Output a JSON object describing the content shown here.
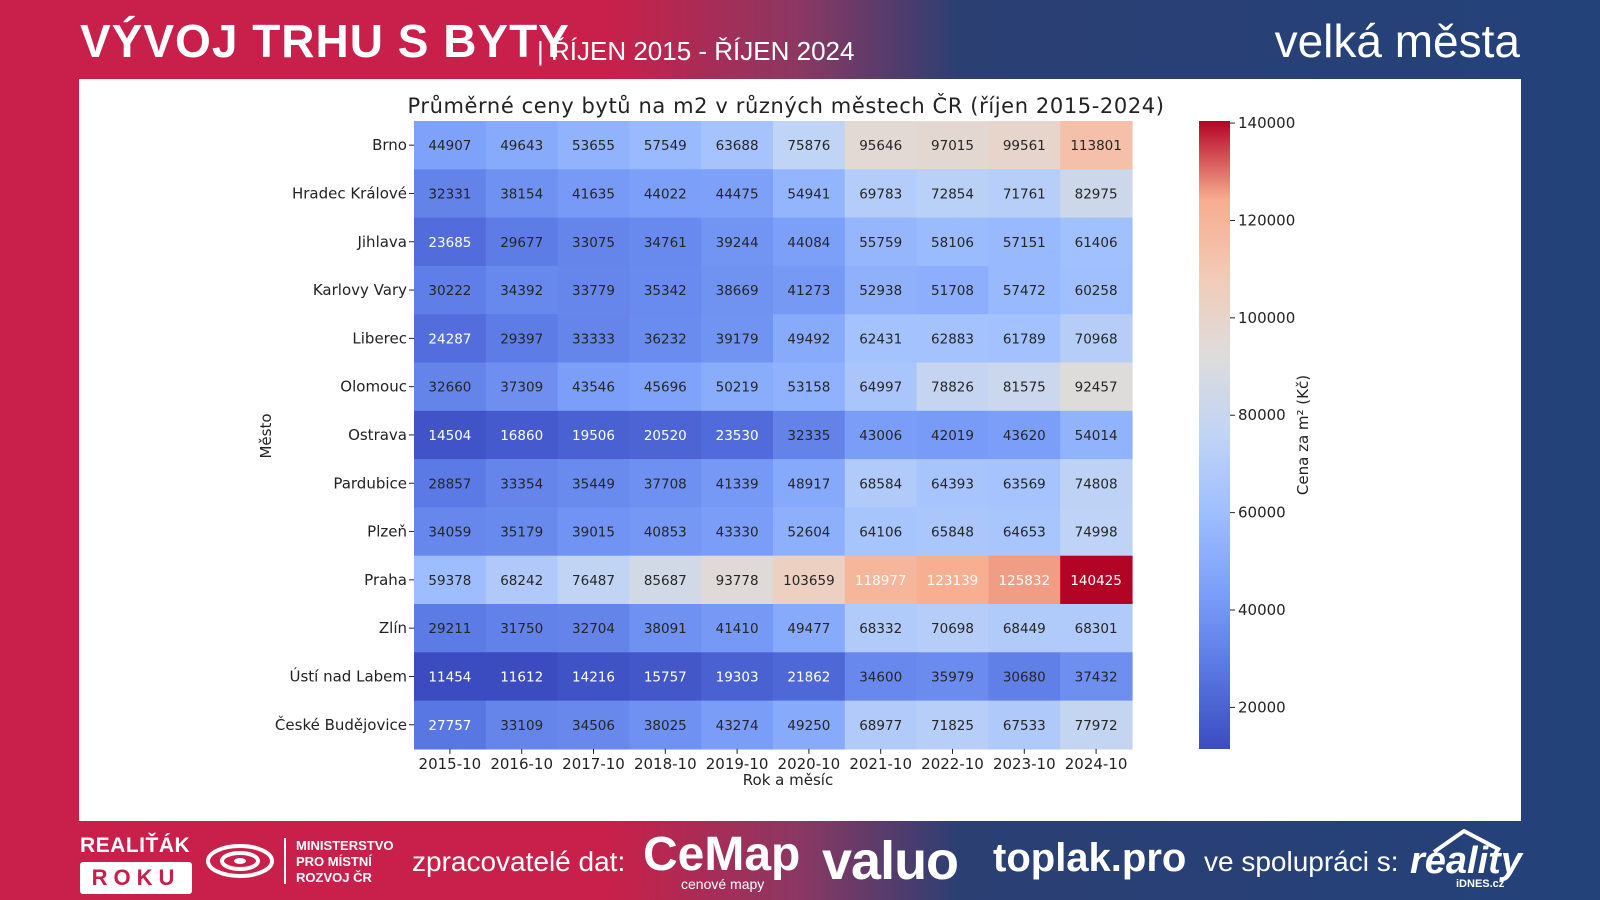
{
  "header": {
    "title": "VÝVOJ TRHU S BYTY",
    "subtitle": "| ŘÍJEN 2015 - ŘÍJEN 2024",
    "right_label": "velká města"
  },
  "footer": {
    "realitak_top": "REALIŤÁK",
    "realitak_box": "ROKU",
    "mmr_line1": "MINISTERSTVO",
    "mmr_line2": "PRO MÍSTNÍ",
    "mmr_line3": "ROZVOJ ČR",
    "processors_label": "zpracovatelé dat:",
    "cemap_name": "CeMap",
    "cemap_sub": "cenové mapy",
    "valuo": "valuo",
    "toplak": "toplak.pro",
    "cooperation_label": "ve spolupráci s:",
    "reality_name": "reality",
    "reality_sub": "iDNES.cz"
  },
  "colors": {
    "brand_red": "#c8204a",
    "brand_blue": "#23427a"
  },
  "chart_data": {
    "type": "heatmap",
    "title": "Průměrné ceny bytů na m2 v různých městech ČR (říjen 2015-2024)",
    "xlabel": "Rok a měsíc",
    "ylabel": "Město",
    "colorbar_label": "Cena za m² (Kč)",
    "colorbar_ticks": [
      20000,
      40000,
      60000,
      80000,
      100000,
      120000,
      140000
    ],
    "colorbar_tick_labels": [
      "20000",
      "40000",
      "60000",
      "80000",
      "100000",
      "120000",
      "140000"
    ],
    "vmin": 11454,
    "vmax": 140425,
    "colormap": "coolwarm",
    "x": [
      "2015-10",
      "2016-10",
      "2017-10",
      "2018-10",
      "2019-10",
      "2020-10",
      "2021-10",
      "2022-10",
      "2023-10",
      "2024-10"
    ],
    "rows": [
      {
        "name": "Brno",
        "values": [
          44907,
          49643,
          53655,
          57549,
          63688,
          75876,
          95646,
          97015,
          99561,
          113801
        ]
      },
      {
        "name": "Hradec Králové",
        "values": [
          32331,
          38154,
          41635,
          44022,
          44475,
          54941,
          69783,
          72854,
          71761,
          82975
        ]
      },
      {
        "name": "Jihlava",
        "values": [
          23685,
          29677,
          33075,
          34761,
          39244,
          44084,
          55759,
          58106,
          57151,
          61406
        ]
      },
      {
        "name": "Karlovy Vary",
        "values": [
          30222,
          34392,
          33779,
          35342,
          38669,
          41273,
          52938,
          51708,
          57472,
          60258
        ]
      },
      {
        "name": "Liberec",
        "values": [
          24287,
          29397,
          33333,
          36232,
          39179,
          49492,
          62431,
          62883,
          61789,
          70968
        ]
      },
      {
        "name": "Olomouc",
        "values": [
          32660,
          37309,
          43546,
          45696,
          50219,
          53158,
          64997,
          78826,
          81575,
          92457
        ]
      },
      {
        "name": "Ostrava",
        "values": [
          14504,
          16860,
          19506,
          20520,
          23530,
          32335,
          43006,
          42019,
          43620,
          54014
        ]
      },
      {
        "name": "Pardubice",
        "values": [
          28857,
          33354,
          35449,
          37708,
          41339,
          48917,
          68584,
          64393,
          63569,
          74808
        ]
      },
      {
        "name": "Plzeň",
        "values": [
          34059,
          35179,
          39015,
          40853,
          43330,
          52604,
          64106,
          65848,
          64653,
          74998
        ]
      },
      {
        "name": "Praha",
        "values": [
          59378,
          68242,
          76487,
          85687,
          93778,
          103659,
          118977,
          123139,
          125832,
          140425
        ]
      },
      {
        "name": "Zlín",
        "values": [
          29211,
          31750,
          32704,
          38091,
          41410,
          49477,
          68332,
          70698,
          68449,
          68301
        ]
      },
      {
        "name": "Ústí nad Labem",
        "values": [
          11454,
          11612,
          14216,
          15757,
          19303,
          21862,
          34600,
          35979,
          30680,
          37432
        ]
      },
      {
        "name": "České Budějovice",
        "values": [
          27757,
          33109,
          34506,
          38025,
          43274,
          49250,
          68977,
          71825,
          67533,
          77972
        ]
      }
    ]
  }
}
